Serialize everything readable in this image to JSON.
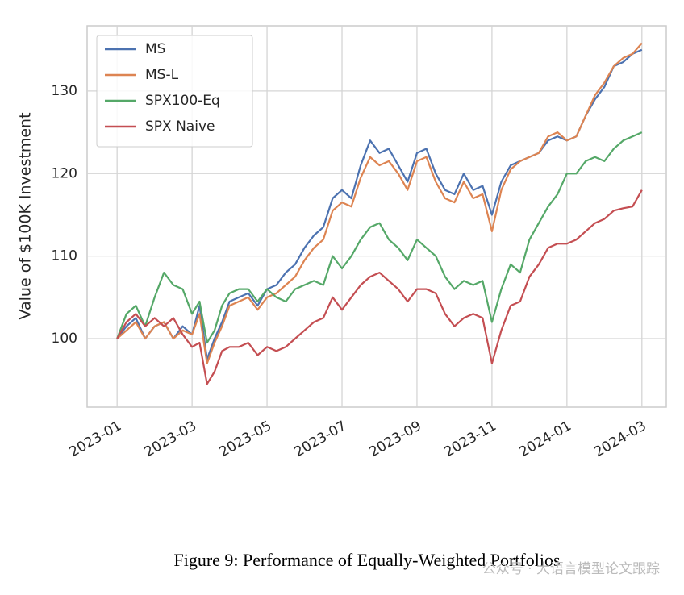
{
  "chart_data": {
    "type": "line",
    "ylabel": "Value of $100K Investment",
    "x": [
      0,
      0.25,
      0.5,
      0.75,
      1,
      1.25,
      1.5,
      1.75,
      2,
      2.2,
      2.4,
      2.6,
      2.8,
      3,
      3.25,
      3.5,
      3.75,
      4,
      4.25,
      4.5,
      4.75,
      5,
      5.25,
      5.5,
      5.75,
      6,
      6.25,
      6.5,
      6.75,
      7,
      7.25,
      7.5,
      7.75,
      8,
      8.25,
      8.5,
      8.75,
      9,
      9.25,
      9.5,
      9.75,
      10,
      10.25,
      10.5,
      10.75,
      11,
      11.25,
      11.5,
      11.75,
      12,
      12.25,
      12.5,
      12.75,
      13,
      13.25,
      13.5,
      13.75,
      14
    ],
    "series": [
      {
        "name": "MS",
        "color": "#4c72b0",
        "values": [
          100,
          101.5,
          102.5,
          100,
          101.5,
          102,
          100,
          101.5,
          100.5,
          104,
          97.5,
          100,
          102,
          104.5,
          105,
          105.5,
          104,
          106,
          106.5,
          108,
          109,
          111,
          112.5,
          113.5,
          117,
          118,
          117,
          121,
          124,
          122.5,
          123,
          121,
          119,
          122.5,
          123,
          120,
          118,
          117.5,
          120,
          118,
          118.5,
          115,
          119,
          121,
          121.5,
          122,
          122.5,
          124,
          124.5,
          124,
          124.5,
          127,
          129,
          130.5,
          133,
          133.5,
          134.5,
          135
        ]
      },
      {
        "name": "MS-L",
        "color": "#dd8452",
        "values": [
          100,
          101,
          102,
          100,
          101.5,
          102,
          100,
          101,
          100.5,
          103,
          97,
          99.5,
          101.5,
          104,
          104.5,
          105,
          103.5,
          105,
          105.5,
          106.5,
          107.5,
          109.5,
          111,
          112,
          115.5,
          116.5,
          116,
          119.5,
          122,
          121,
          121.5,
          120,
          118,
          121.5,
          122,
          119,
          117,
          116.5,
          119,
          117,
          117.5,
          113,
          118,
          120.5,
          121.5,
          122,
          122.5,
          124.5,
          125,
          124,
          124.5,
          127,
          129.5,
          131,
          133,
          134,
          134.5,
          135.8
        ]
      },
      {
        "name": "SPX100-Eq",
        "color": "#55a868",
        "values": [
          100,
          103,
          104,
          101.5,
          105,
          108,
          106.5,
          106,
          103,
          104.5,
          99.5,
          101,
          104,
          105.5,
          106,
          106,
          104.5,
          106,
          105,
          104.5,
          106,
          106.5,
          107,
          106.5,
          110,
          108.5,
          110,
          112,
          113.5,
          114,
          112,
          111,
          109.5,
          112,
          111,
          110,
          107.5,
          106,
          107,
          106.5,
          107,
          102,
          106,
          109,
          108,
          112,
          114,
          116,
          117.5,
          120,
          120,
          121.5,
          122,
          121.5,
          123,
          124,
          124.5,
          125
        ]
      },
      {
        "name": "SPX Naive",
        "color": "#c44e52",
        "values": [
          100,
          102,
          103,
          101.5,
          102.5,
          101.5,
          102.5,
          100.5,
          99,
          99.5,
          94.5,
          96,
          98.5,
          99,
          99,
          99.5,
          98,
          99,
          98.5,
          99,
          100,
          101,
          102,
          102.5,
          105,
          103.5,
          105,
          106.5,
          107.5,
          108,
          107,
          106,
          104.5,
          106,
          106,
          105.5,
          103,
          101.5,
          102.5,
          103,
          102.5,
          97,
          101,
          104,
          104.5,
          107.5,
          109,
          111,
          111.5,
          111.5,
          112,
          113,
          114,
          114.5,
          115.5,
          115.8,
          116,
          118
        ]
      }
    ],
    "xlim": [
      -0.8,
      14.65
    ],
    "xticks": [
      {
        "value": 0,
        "label": "2023-01"
      },
      {
        "value": 2,
        "label": "2023-03"
      },
      {
        "value": 4,
        "label": "2023-05"
      },
      {
        "value": 6,
        "label": "2023-07"
      },
      {
        "value": 8,
        "label": "2023-09"
      },
      {
        "value": 10,
        "label": "2023-11"
      },
      {
        "value": 12,
        "label": "2024-01"
      },
      {
        "value": 14,
        "label": "2024-03"
      }
    ],
    "ylim": [
      91.7,
      137.9
    ],
    "yticks": [
      100,
      110,
      120,
      130
    ],
    "grid": true,
    "legend": "upper left"
  },
  "caption": "Figure 9: Performance of Equally-Weighted Portfolios",
  "watermark": "公众号 · 大语言模型论文跟踪"
}
